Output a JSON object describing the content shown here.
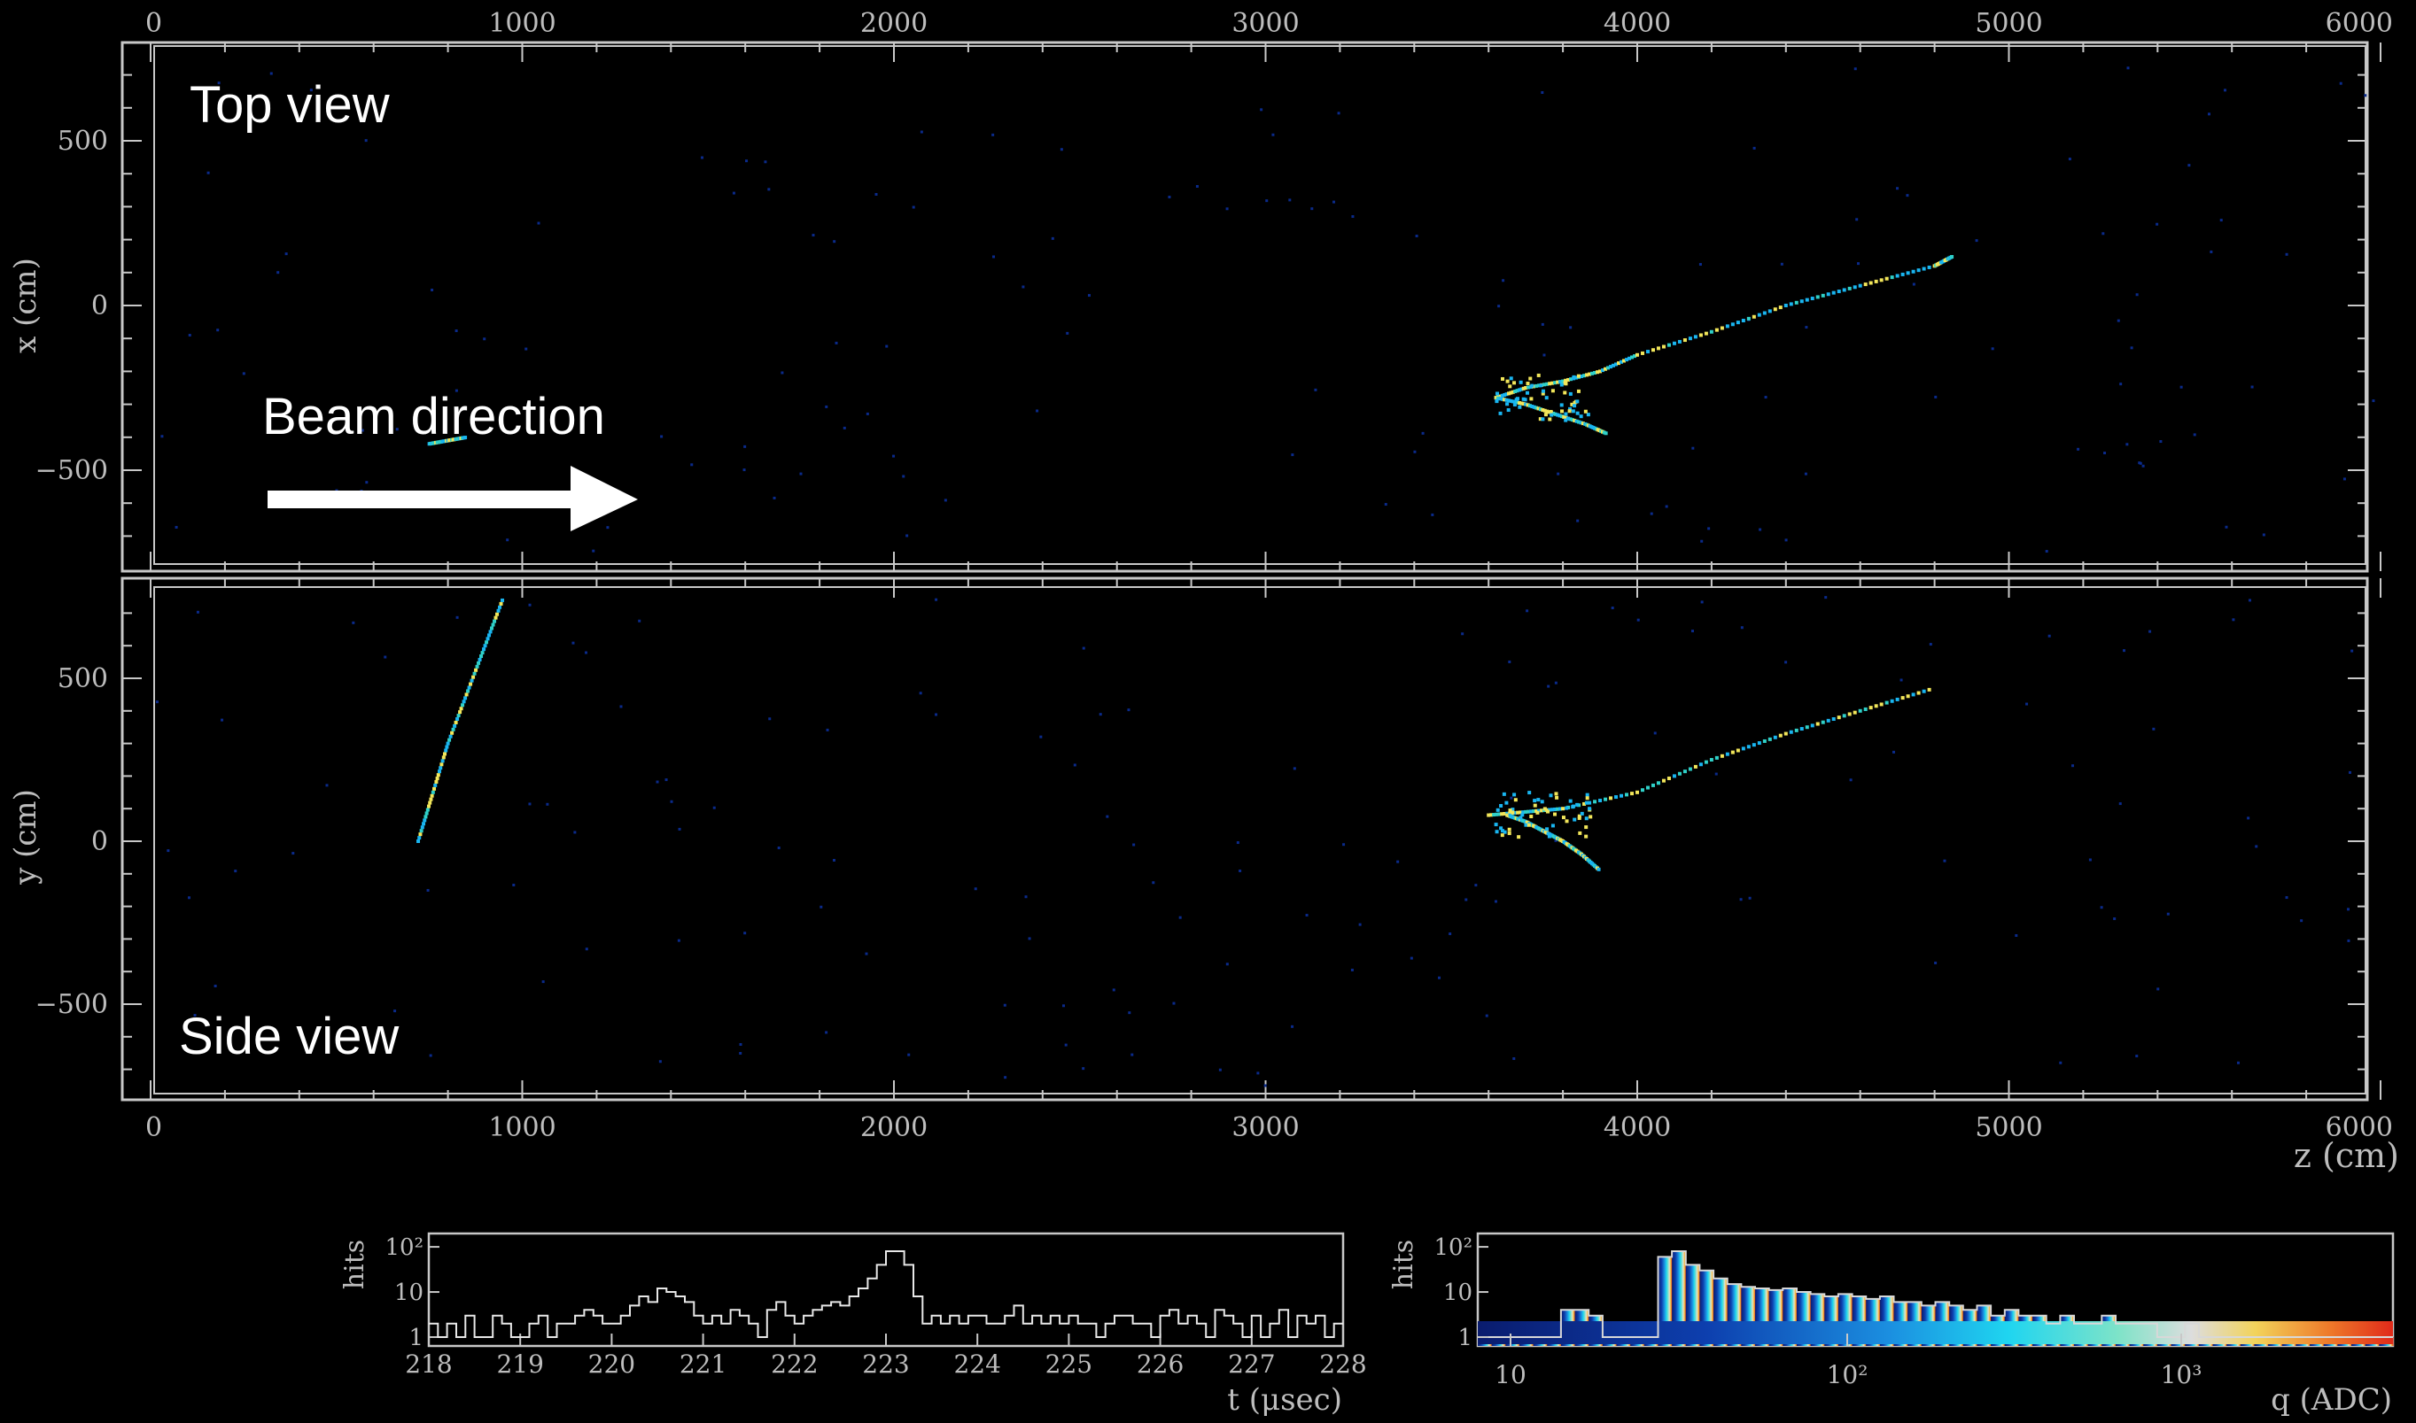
{
  "annotations": {
    "top_view": "Top view",
    "side_view": "Side view",
    "beam_direction": "Beam direction"
  },
  "colors": {
    "background": "#000000",
    "frame": "#c8c8c8",
    "annotation_text": "#ffffff",
    "hit_low": "#0a2a8a",
    "hit_mid": "#19b5f0",
    "hit_high": "#f2e65a"
  },
  "top_view": {
    "ylabel": "x (cm)",
    "xlim": [
      0,
      6000
    ],
    "ylim": [
      -800,
      800
    ],
    "x_ticks": [
      "0",
      "1000",
      "2000",
      "3000",
      "4000",
      "5000",
      "6000"
    ],
    "y_ticks": [
      {
        "v": 500,
        "label": "500"
      },
      {
        "v": 0,
        "label": "0"
      },
      {
        "v": -500,
        "label": "−500"
      }
    ]
  },
  "side_view": {
    "ylabel": "y (cm)",
    "xlabel": "z (cm)",
    "xlim": [
      0,
      6000
    ],
    "ylim": [
      -800,
      800
    ],
    "x_ticks": [
      "0",
      "1000",
      "2000",
      "3000",
      "4000",
      "5000",
      "6000"
    ],
    "y_ticks": [
      {
        "v": 500,
        "label": "500"
      },
      {
        "v": 0,
        "label": "0"
      },
      {
        "v": -500,
        "label": "−500"
      }
    ]
  },
  "chart_data": [
    {
      "type": "scatter",
      "title": "Top view",
      "ylabel": "x (cm)",
      "xlim": [
        0,
        6000
      ],
      "ylim": [
        -800,
        800
      ],
      "series": [
        {
          "x": [
            3620,
            3700,
            3800,
            3900,
            4000,
            4200,
            4400,
            4600,
            4800,
            4850
          ],
          "y": [
            -280,
            -250,
            -230,
            -200,
            -150,
            -80,
            0,
            60,
            120,
            150
          ]
        },
        {
          "x": [
            3620,
            3700,
            3780,
            3860,
            3920
          ],
          "y": [
            -280,
            -300,
            -330,
            -360,
            -390
          ]
        },
        {
          "x": [
            750,
            800,
            850
          ],
          "y": [
            -420,
            -410,
            -400
          ]
        }
      ]
    },
    {
      "type": "scatter",
      "title": "Side view",
      "xlabel": "z (cm)",
      "ylabel": "y (cm)",
      "xlim": [
        0,
        6000
      ],
      "ylim": [
        -800,
        800
      ],
      "series": [
        {
          "x": [
            3600,
            3700,
            3800,
            4000,
            4200,
            4400,
            4600,
            4800
          ],
          "y": [
            80,
            90,
            100,
            150,
            250,
            330,
            400,
            470
          ]
        },
        {
          "x": [
            3650,
            3700,
            3750,
            3800,
            3850,
            3900
          ],
          "y": [
            80,
            60,
            30,
            0,
            -40,
            -90
          ]
        },
        {
          "x": [
            720,
            760,
            800,
            850,
            900,
            950
          ],
          "y": [
            0,
            150,
            300,
            450,
            600,
            750
          ]
        }
      ]
    },
    {
      "type": "step",
      "xlabel": "t (μsec)",
      "ylabel": "hits",
      "xlim": [
        218,
        228
      ],
      "x_ticks": [
        "218",
        "219",
        "220",
        "221",
        "222",
        "223",
        "224",
        "225",
        "226",
        "227",
        "228"
      ],
      "y_ticks": [
        "1",
        "10",
        "10²"
      ],
      "values": [
        2,
        1,
        2,
        1,
        3,
        1,
        1,
        3,
        2,
        1,
        1,
        2,
        3,
        1,
        2,
        2,
        3,
        4,
        3,
        2,
        2,
        3,
        5,
        8,
        6,
        12,
        10,
        8,
        6,
        3,
        2,
        3,
        2,
        4,
        3,
        2,
        1,
        4,
        6,
        3,
        2,
        3,
        4,
        5,
        6,
        5,
        8,
        12,
        20,
        40,
        80,
        80,
        40,
        8,
        2,
        3,
        2,
        3,
        2,
        3,
        3,
        2,
        2,
        3,
        5,
        2,
        3,
        2,
        3,
        2,
        3,
        2,
        2,
        1,
        2,
        3,
        3,
        2,
        2,
        1,
        3,
        4,
        2,
        3,
        2,
        1,
        4,
        3,
        2,
        1,
        3,
        1,
        2,
        4,
        1,
        3,
        2,
        3,
        1,
        2
      ]
    },
    {
      "type": "histogram",
      "xlabel": "q (ADC)",
      "ylabel": "hits",
      "x_ticks": [
        "10",
        "10²",
        "10³"
      ],
      "y_ticks": [
        "1",
        "10",
        "10²"
      ],
      "values": [
        1,
        1,
        1,
        1,
        1,
        1,
        4,
        4,
        3,
        1,
        1,
        1,
        1,
        60,
        80,
        40,
        30,
        20,
        15,
        13,
        12,
        11,
        12,
        10,
        9,
        8,
        9,
        8,
        7,
        8,
        6,
        6,
        5,
        6,
        5,
        4,
        5,
        3,
        4,
        3,
        3,
        2,
        3,
        2,
        2,
        3,
        2,
        2,
        2,
        1,
        1,
        2,
        1,
        1,
        1,
        1,
        1,
        1,
        1,
        1,
        1,
        1,
        1,
        1,
        1,
        1
      ]
    }
  ],
  "mini_time": {
    "ylabel": "hits",
    "xlabel": "t (μsec)",
    "x_ticks": [
      "218",
      "219",
      "220",
      "221",
      "222",
      "223",
      "224",
      "225",
      "226",
      "227",
      "228"
    ],
    "y_ticks": [
      "1",
      "10",
      "10²"
    ]
  },
  "mini_charge": {
    "ylabel": "hits",
    "xlabel": "q (ADC)",
    "x_ticks": [
      "10",
      "10²",
      "10³"
    ],
    "y_ticks": [
      "1",
      "10",
      "10²"
    ]
  }
}
